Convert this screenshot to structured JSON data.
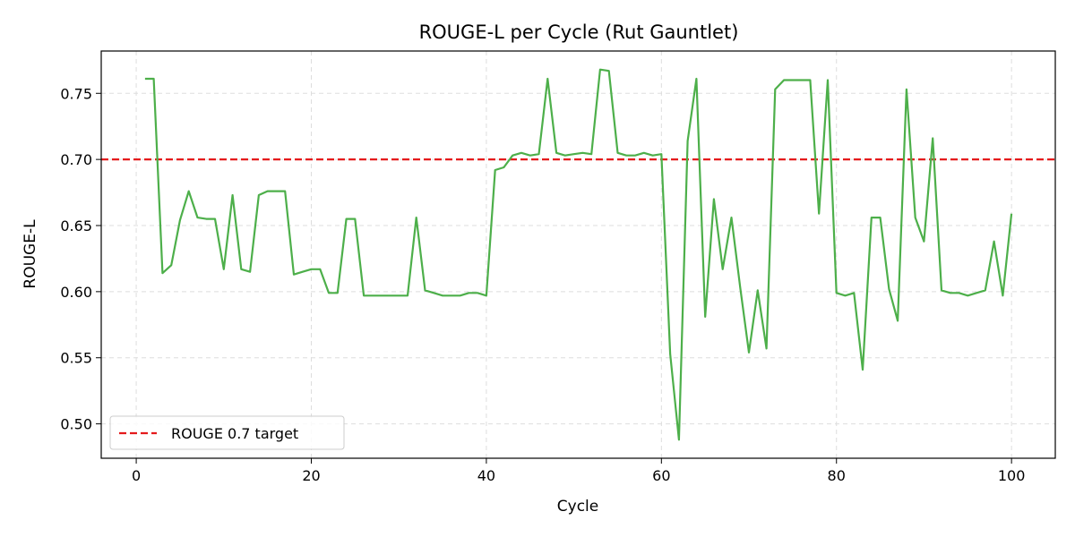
{
  "chart_data": {
    "type": "line",
    "title": "ROUGE-L per Cycle (Rut Gauntlet)",
    "xlabel": "Cycle",
    "ylabel": "ROUGE-L",
    "xlim": [
      -4,
      105
    ],
    "ylim": [
      0.474,
      0.782
    ],
    "xticks": [
      0,
      20,
      40,
      60,
      80,
      100
    ],
    "yticks": [
      0.5,
      0.55,
      0.6,
      0.65,
      0.7,
      0.75
    ],
    "ytick_labels": [
      "0.50",
      "0.55",
      "0.60",
      "0.65",
      "0.70",
      "0.75"
    ],
    "grid": true,
    "legend": {
      "position": "lower-left",
      "entries": [
        "ROUGE 0.7 target"
      ]
    },
    "reference_line": {
      "name": "ROUGE 0.7 target",
      "y": 0.7,
      "color": "#e41a1c",
      "style": "dashed"
    },
    "series": [
      {
        "color": "#4daf4a",
        "x": [
          1,
          2,
          3,
          4,
          5,
          6,
          7,
          8,
          9,
          10,
          11,
          12,
          13,
          14,
          15,
          16,
          17,
          18,
          19,
          20,
          21,
          22,
          23,
          24,
          25,
          26,
          27,
          28,
          29,
          30,
          31,
          32,
          33,
          34,
          35,
          36,
          37,
          38,
          39,
          40,
          41,
          42,
          43,
          44,
          45,
          46,
          47,
          48,
          49,
          50,
          51,
          52,
          53,
          54,
          55,
          56,
          57,
          58,
          59,
          60,
          61,
          62,
          63,
          64,
          65,
          66,
          67,
          68,
          69,
          70,
          71,
          72,
          73,
          74,
          75,
          76,
          77,
          78,
          79,
          80,
          81,
          82,
          83,
          84,
          85,
          86,
          87,
          88,
          89,
          90,
          91,
          92,
          93,
          94,
          95,
          96,
          97,
          98,
          99,
          100
        ],
        "y": [
          0.761,
          0.761,
          0.614,
          0.62,
          0.654,
          0.676,
          0.656,
          0.655,
          0.655,
          0.617,
          0.673,
          0.617,
          0.615,
          0.673,
          0.676,
          0.676,
          0.676,
          0.613,
          0.615,
          0.617,
          0.617,
          0.599,
          0.599,
          0.655,
          0.655,
          0.597,
          0.597,
          0.597,
          0.597,
          0.597,
          0.597,
          0.656,
          0.601,
          0.599,
          0.597,
          0.597,
          0.597,
          0.599,
          0.599,
          0.597,
          0.692,
          0.694,
          0.703,
          0.705,
          0.703,
          0.704,
          0.761,
          0.705,
          0.703,
          0.704,
          0.705,
          0.704,
          0.768,
          0.767,
          0.705,
          0.703,
          0.703,
          0.705,
          0.703,
          0.704,
          0.553,
          0.488,
          0.714,
          0.761,
          0.581,
          0.67,
          0.617,
          0.656,
          0.603,
          0.554,
          0.601,
          0.557,
          0.753,
          0.76,
          0.76,
          0.76,
          0.76,
          0.659,
          0.76,
          0.599,
          0.597,
          0.599,
          0.541,
          0.656,
          0.656,
          0.602,
          0.578,
          0.753,
          0.656,
          0.638,
          0.716,
          0.601,
          0.599,
          0.599,
          0.597,
          0.599,
          0.601,
          0.638,
          0.597,
          0.659
        ]
      }
    ]
  }
}
